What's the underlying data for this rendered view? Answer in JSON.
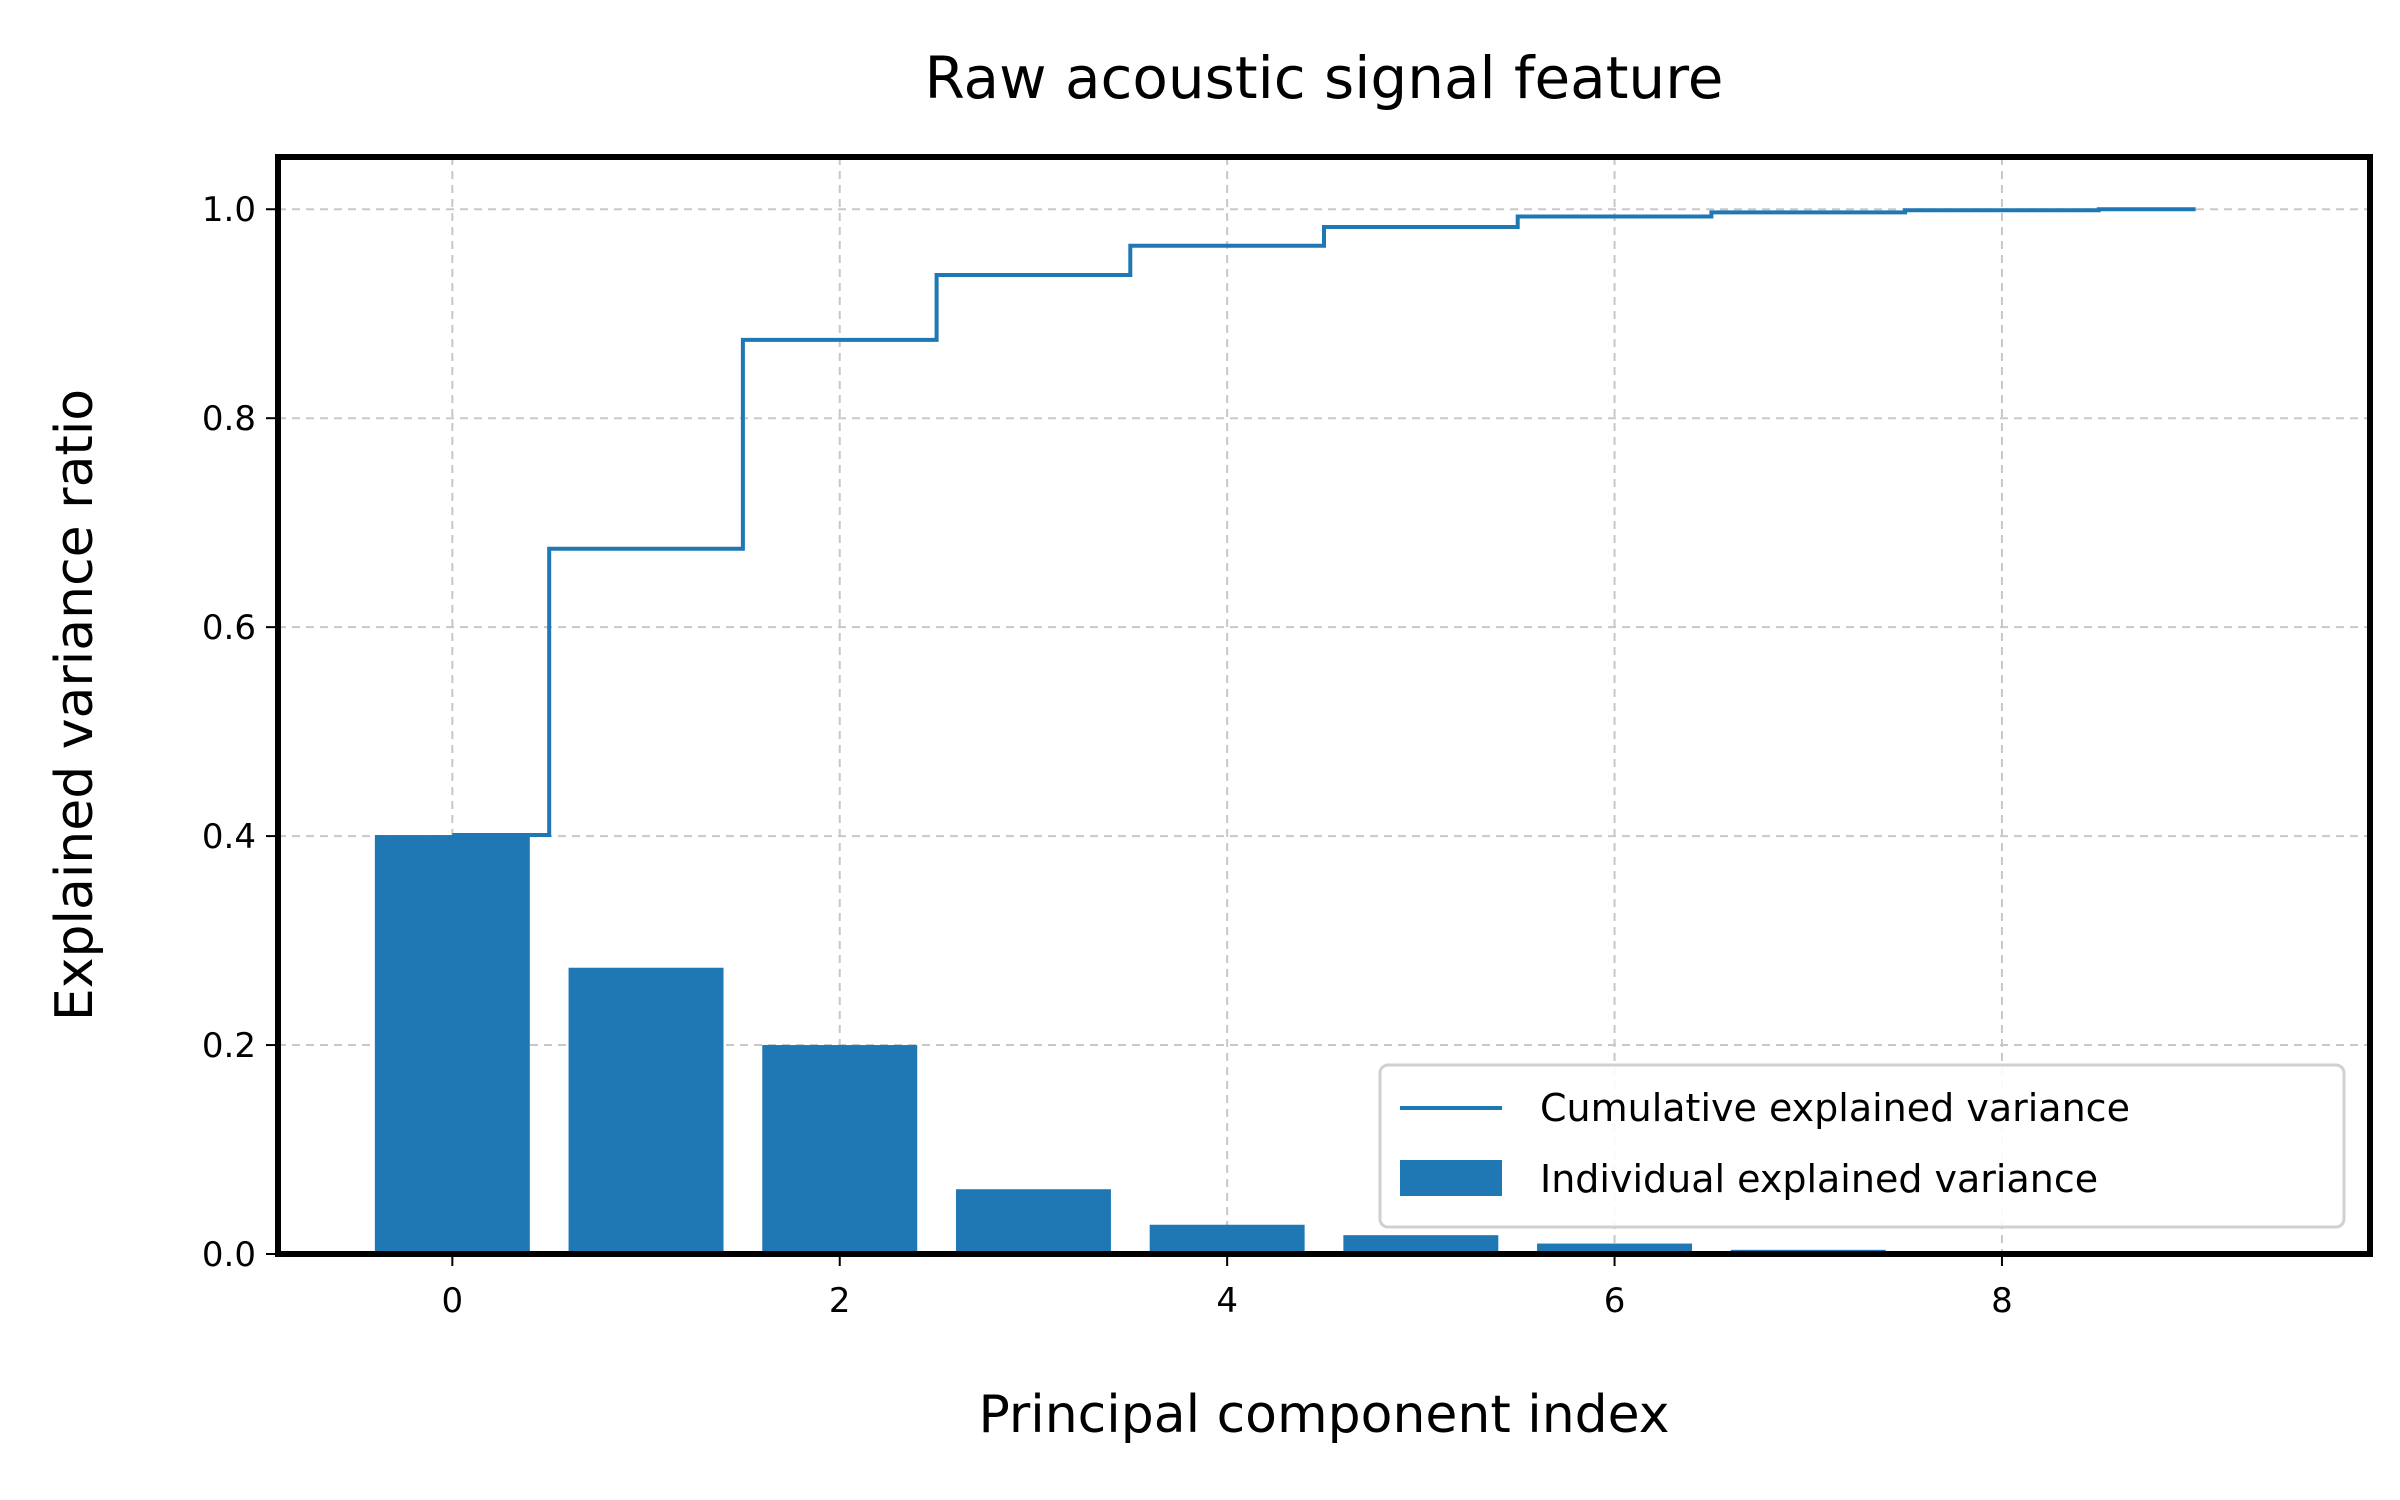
{
  "chart_data": {
    "type": "bar",
    "title": "Raw acoustic signal feature",
    "xlabel": "Principal component index",
    "ylabel": "Explained variance ratio",
    "x": [
      0,
      1,
      2,
      3,
      4,
      5,
      6,
      7,
      8,
      9
    ],
    "xlim": [
      -0.9,
      9.9
    ],
    "ylim": [
      0,
      1.05
    ],
    "xticks": [
      0,
      2,
      4,
      6,
      8
    ],
    "yticks": [
      0.0,
      0.2,
      0.4,
      0.6,
      0.8,
      1.0
    ],
    "xtick_labels": [
      "0",
      "2",
      "4",
      "6",
      "8"
    ],
    "ytick_labels": [
      "0.0",
      "0.2",
      "0.4",
      "0.6",
      "0.8",
      "1.0"
    ],
    "grid": true,
    "legend_position": "lower-right",
    "series": [
      {
        "name": "Cumulative explained variance",
        "type": "step",
        "color": "#1f77b4",
        "values": [
          0.401,
          0.675,
          0.875,
          0.937,
          0.965,
          0.983,
          0.993,
          0.997,
          0.999,
          1.0
        ]
      },
      {
        "name": "Individual explained variance",
        "type": "bar",
        "color": "#1f77b4",
        "values": [
          0.401,
          0.274,
          0.2,
          0.062,
          0.028,
          0.018,
          0.01,
          0.004,
          0.002,
          0.001
        ]
      }
    ]
  }
}
